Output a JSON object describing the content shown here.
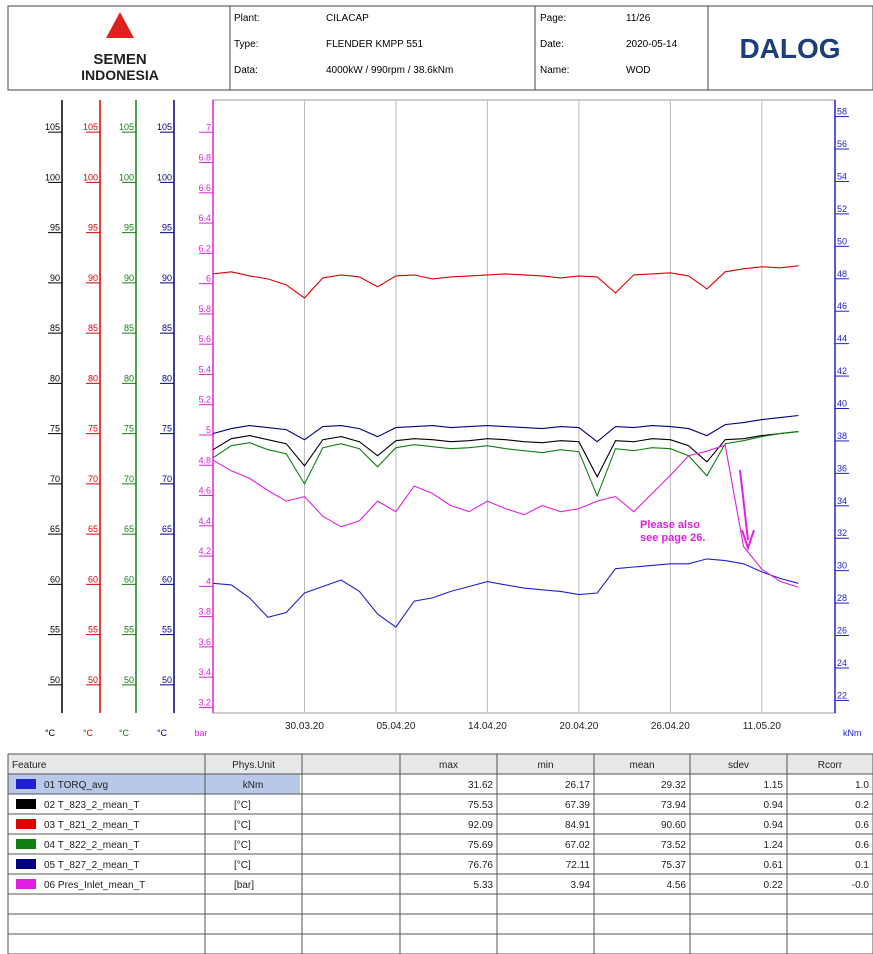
{
  "header": {
    "logo_top": "SEMEN",
    "logo_bottom": "INDONESIA",
    "brand": "DALOG",
    "fields": [
      {
        "label": "Plant:",
        "value": "CILACAP"
      },
      {
        "label": "Type:",
        "value": "FLENDER KMPP 551"
      },
      {
        "label": "Data:",
        "value": "4000kW / 990rpm / 38.6kNm"
      },
      {
        "label": "Page:",
        "value": "11/26"
      },
      {
        "label": "Date:",
        "value": "2020-05-14"
      },
      {
        "label": "Name:",
        "value": "WOD"
      }
    ]
  },
  "chart_data": {
    "type": "line",
    "grid": "x",
    "annotation": {
      "text": "Please also see page 26.",
      "color": "#e020e0"
    },
    "xlim": [
      0,
      68
    ],
    "xticks": [
      {
        "value": 10,
        "label": "30.03.20"
      },
      {
        "value": 20,
        "label": "05.04.20"
      },
      {
        "value": 30,
        "label": "14.04.20"
      },
      {
        "value": 40,
        "label": "20.04.20"
      },
      {
        "value": 50,
        "label": "26.04.20"
      },
      {
        "value": 60,
        "label": "11.05.20"
      }
    ],
    "axes": [
      {
        "label": "°C",
        "color": "#000000",
        "ylim": [
          47,
          108
        ],
        "yticks": [
          50,
          55,
          60,
          65,
          70,
          75,
          80,
          85,
          90,
          95,
          100,
          105
        ]
      },
      {
        "label": "°C",
        "color": "#e00000",
        "ylim": [
          47,
          108
        ],
        "yticks": [
          50,
          55,
          60,
          65,
          70,
          75,
          80,
          85,
          90,
          95,
          100,
          105
        ]
      },
      {
        "label": "°C",
        "color": "#108010",
        "ylim": [
          47,
          108
        ],
        "yticks": [
          50,
          55,
          60,
          65,
          70,
          75,
          80,
          85,
          90,
          95,
          100,
          105
        ]
      },
      {
        "label": "°C",
        "color": "#000080",
        "ylim": [
          47,
          108
        ],
        "yticks": [
          50,
          55,
          60,
          65,
          70,
          75,
          80,
          85,
          90,
          95,
          100,
          105
        ]
      },
      {
        "label": "bar",
        "color": "#e020e0",
        "ylim": [
          3.15,
          7.2
        ],
        "yticks": [
          3.2,
          3.4,
          3.6,
          3.8,
          4,
          4.2,
          4.4,
          4.6,
          4.8,
          5,
          5.2,
          5.4,
          5.6,
          5.8,
          6,
          6.2,
          6.4,
          6.6,
          6.8,
          7
        ]
      },
      {
        "label": "kNm",
        "color": "#2020d0",
        "ylim": [
          21.1,
          58.9
        ],
        "yticks": [
          22,
          24,
          26,
          28,
          30,
          32,
          34,
          36,
          38,
          40,
          42,
          44,
          46,
          48,
          50,
          52,
          54,
          56,
          58
        ]
      }
    ],
    "x": [
      0,
      2,
      4,
      6,
      8,
      10,
      12,
      14,
      16,
      18,
      20,
      22,
      24,
      26,
      28,
      30,
      32,
      34,
      36,
      38,
      40,
      42,
      44,
      46,
      48,
      50,
      52,
      54,
      56,
      58,
      60,
      62,
      64
    ],
    "series": [
      {
        "name": "01 TORQ_avg",
        "color": "#2020d0",
        "axis": 5,
        "values": [
          29.1,
          29.0,
          28.2,
          27.0,
          27.3,
          28.5,
          28.9,
          29.3,
          28.6,
          27.2,
          26.4,
          28.0,
          28.2,
          28.6,
          28.9,
          29.2,
          29.0,
          28.8,
          28.7,
          28.6,
          28.4,
          28.5,
          30.0,
          30.1,
          30.2,
          30.3,
          30.3,
          30.6,
          30.5,
          30.3,
          29.8,
          29.4,
          29.1
        ]
      },
      {
        "name": "02 T_823_2_mean_T",
        "color": "#000000",
        "axis": 0,
        "values": [
          73.2,
          74.3,
          74.6,
          74.2,
          73.8,
          71.6,
          74.2,
          74.5,
          74.0,
          72.6,
          74.1,
          74.3,
          74.2,
          74.0,
          74.1,
          74.3,
          74.2,
          74.0,
          73.9,
          74.1,
          74.0,
          70.5,
          74.1,
          74.0,
          74.3,
          74.2,
          73.6,
          72.0,
          74.2,
          74.3,
          74.6,
          74.8,
          75.0
        ]
      },
      {
        "name": "03 T_821_2_mean_T",
        "color": "#e00000",
        "axis": 1,
        "values": [
          90.7,
          90.9,
          90.5,
          90.2,
          89.6,
          88.3,
          90.3,
          90.6,
          90.4,
          89.4,
          90.5,
          90.6,
          90.2,
          90.4,
          90.5,
          90.6,
          90.7,
          90.6,
          90.5,
          90.3,
          90.5,
          90.4,
          88.8,
          90.6,
          90.7,
          90.8,
          90.5,
          89.2,
          90.9,
          91.2,
          91.4,
          91.3,
          91.5
        ]
      },
      {
        "name": "04 T_822_2_mean_T",
        "color": "#108010",
        "axis": 2,
        "values": [
          72.4,
          73.6,
          73.9,
          73.2,
          72.8,
          69.8,
          73.4,
          73.8,
          73.3,
          71.5,
          73.4,
          73.7,
          73.5,
          73.3,
          73.4,
          73.6,
          73.3,
          73.1,
          72.9,
          73.2,
          73.0,
          68.6,
          73.3,
          73.1,
          73.4,
          73.3,
          72.6,
          70.6,
          73.8,
          74.1,
          74.5,
          74.8,
          75.0
        ]
      },
      {
        "name": "05 T_827_2_mean_T",
        "color": "#000080",
        "axis": 3,
        "values": [
          74.8,
          75.3,
          75.6,
          75.4,
          75.2,
          74.2,
          75.5,
          75.6,
          75.3,
          74.5,
          75.4,
          75.5,
          75.6,
          75.4,
          75.5,
          75.6,
          75.5,
          75.4,
          75.3,
          75.5,
          75.4,
          74.0,
          75.5,
          75.4,
          75.6,
          75.5,
          75.3,
          74.6,
          75.7,
          75.9,
          76.2,
          76.4,
          76.6
        ]
      },
      {
        "name": "06 Pres_Inlet_mean_T",
        "color": "#e020e0",
        "axis": 4,
        "values": [
          4.82,
          4.75,
          4.7,
          4.62,
          4.55,
          4.58,
          4.45,
          4.38,
          4.42,
          4.55,
          4.48,
          4.65,
          4.6,
          4.52,
          4.48,
          4.55,
          4.5,
          4.46,
          4.52,
          4.48,
          4.5,
          4.55,
          4.58,
          4.48,
          4.6,
          4.72,
          4.85,
          4.88,
          4.92,
          4.25,
          4.1,
          4.02,
          3.98
        ]
      }
    ]
  },
  "table": {
    "columns": [
      "Feature",
      "Phys.Unit",
      "",
      "max",
      "min",
      "mean",
      "sdev",
      "Rcorr"
    ],
    "rows": [
      [
        "kNm",
        "31.62",
        "26.17",
        "29.32",
        "1.15",
        "1.0"
      ],
      [
        "[°C]",
        "75.53",
        "67.39",
        "73.94",
        "0.94",
        "0.2"
      ],
      [
        "[°C]",
        "92.09",
        "84.91",
        "90.60",
        "0.94",
        "0.6"
      ],
      [
        "[°C]",
        "75.69",
        "67.02",
        "73.52",
        "1.24",
        "0.6"
      ],
      [
        "[°C]",
        "76.76",
        "72.11",
        "75.37",
        "0.61",
        "0.1"
      ],
      [
        "[bar]",
        "5.33",
        "3.94",
        "4.56",
        "0.22",
        "-0.0"
      ]
    ]
  }
}
